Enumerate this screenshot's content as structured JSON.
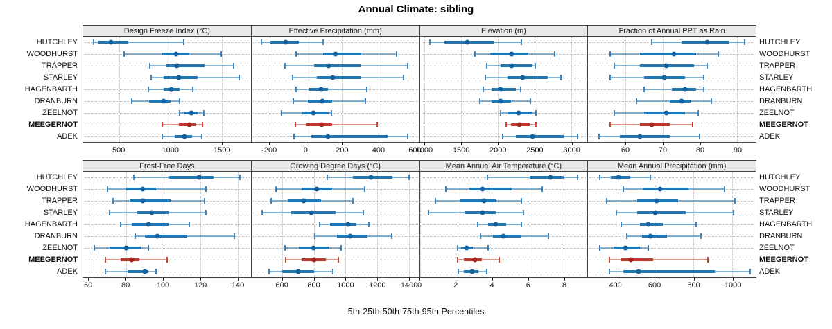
{
  "title": "Annual Climate: sibling",
  "caption": "5th-25th-50th-75th-95th Percentiles",
  "sites": [
    "HUTCHLEY",
    "WOODHURST",
    "TRAPPER",
    "STARLEY",
    "HAGENBARTH",
    "DRANBURN",
    "ZEELNOT",
    "MEEGERNOT",
    "ADEK"
  ],
  "highlight_site": "MEEGERNOT",
  "colors": {
    "series_blue": "#1f77b4",
    "series_blue_dot": "#15639e",
    "highlight_red": "#c0392b",
    "highlight_red_dot": "#a52a1d",
    "strip_background": "#e9e9e9",
    "grid": "#b8b8b8"
  },
  "percentile_labels": [
    "5th",
    "25th",
    "50th",
    "75th",
    "95th"
  ],
  "chart_data": [
    {
      "type": "interval-dotplot",
      "title": "Design Freeze Index (°C)",
      "xlim": [
        150,
        1780
      ],
      "ticks": [
        500,
        1000,
        1500
      ],
      "values": [
        [
          250,
          290,
          420,
          590,
          1130
        ],
        [
          545,
          910,
          1055,
          1185,
          1490
        ],
        [
          800,
          960,
          1060,
          1330,
          1610
        ],
        [
          810,
          930,
          1080,
          1260,
          1670
        ],
        [
          785,
          930,
          1005,
          1090,
          1215
        ],
        [
          620,
          790,
          930,
          1000,
          1090
        ],
        [
          1085,
          1135,
          1200,
          1260,
          1320
        ],
        [
          920,
          1080,
          1180,
          1240,
          1310
        ],
        [
          920,
          1040,
          1135,
          1210,
          1300
        ]
      ]
    },
    {
      "type": "interval-dotplot",
      "title": "Effective Precipitation (mm)",
      "xlim": [
        -300,
        625
      ],
      "ticks": [
        -200,
        0,
        200,
        400,
        600
      ],
      "values": [
        [
          -245,
          -195,
          -112,
          -40,
          95
        ],
        [
          -55,
          95,
          165,
          305,
          500
        ],
        [
          -115,
          45,
          127,
          300,
          560
        ],
        [
          -75,
          60,
          148,
          300,
          540
        ],
        [
          -55,
          15,
          85,
          120,
          335
        ],
        [
          -70,
          10,
          90,
          145,
          330
        ],
        [
          -135,
          -20,
          40,
          125,
          140
        ],
        [
          -57,
          0,
          89,
          145,
          395
        ],
        [
          -65,
          30,
          120,
          450,
          560
        ]
      ]
    },
    {
      "type": "interval-dotplot",
      "title": "Elevation (m)",
      "xlim": [
        935,
        3220
      ],
      "ticks": [
        1000,
        1500,
        2000,
        2500,
        3000
      ],
      "values": [
        [
          1070,
          1275,
          1585,
          1940,
          2320
        ],
        [
          1690,
          1890,
          2190,
          2415,
          2770
        ],
        [
          1845,
          2035,
          2190,
          2470,
          2510
        ],
        [
          1830,
          2130,
          2335,
          2680,
          2860
        ],
        [
          1800,
          1910,
          2035,
          2240,
          2310
        ],
        [
          1755,
          1910,
          2035,
          2175,
          2445
        ],
        [
          2040,
          2130,
          2280,
          2460,
          2515
        ],
        [
          2115,
          2180,
          2295,
          2430,
          2515
        ],
        [
          2065,
          2245,
          2470,
          2900,
          3085
        ]
      ]
    },
    {
      "type": "interval-dotplot",
      "title": "Fraction of Annual PPT as Rain",
      "xlim": [
        50,
        95
      ],
      "ticks": [
        60,
        70,
        80,
        90
      ],
      "values": [
        [
          67,
          75,
          82,
          88,
          92
        ],
        [
          56,
          64,
          73,
          79,
          85
        ],
        [
          57,
          64,
          71,
          78.5,
          82
        ],
        [
          56,
          65,
          70.5,
          76,
          81
        ],
        [
          65,
          72.5,
          76,
          79,
          81
        ],
        [
          63,
          72,
          75,
          77.5,
          83
        ],
        [
          57,
          65,
          71,
          76,
          79.5
        ],
        [
          56,
          64,
          67,
          72,
          78
        ],
        [
          53,
          58.5,
          64,
          72,
          80
        ]
      ]
    },
    {
      "type": "interval-dotplot",
      "title": "Frost-Free Days",
      "xlim": [
        57,
        147
      ],
      "ticks": [
        60,
        80,
        100,
        120,
        140
      ],
      "values": [
        [
          84,
          103,
          119,
          127,
          141
        ],
        [
          70,
          80,
          89,
          96,
          123
        ],
        [
          73,
          82,
          89,
          104,
          122
        ],
        [
          71,
          86,
          94,
          103,
          123
        ],
        [
          77,
          83,
          92,
          103,
          114
        ],
        [
          85,
          90,
          97,
          113,
          138
        ],
        [
          63,
          71,
          80,
          88,
          92
        ],
        [
          69,
          77,
          83,
          87,
          102
        ],
        [
          69,
          81,
          90,
          92,
          96
        ]
      ]
    },
    {
      "type": "interval-dotplot",
      "title": "Growing Degree Days (°C)",
      "xlim": [
        405,
        1465
      ],
      "ticks": [
        600,
        800,
        1000,
        1200,
        1400
      ],
      "values": [
        [
          885,
          1045,
          1160,
          1295,
          1400
        ],
        [
          560,
          720,
          820,
          915,
          1120
        ],
        [
          530,
          635,
          735,
          845,
          1045
        ],
        [
          470,
          655,
          785,
          935,
          1110
        ],
        [
          835,
          900,
          1015,
          1070,
          1145
        ],
        [
          805,
          945,
          1030,
          1140,
          1290
        ],
        [
          615,
          705,
          795,
          895,
          970
        ],
        [
          620,
          720,
          800,
          875,
          955
        ],
        [
          515,
          600,
          700,
          800,
          920
        ]
      ]
    },
    {
      "type": "interval-dotplot",
      "title": "Mean Annual Air Temperature (°C)",
      "xlim": [
        0,
        9.3
      ],
      "ticks": [
        0,
        2,
        4,
        6,
        8
      ],
      "values": [
        [
          3.75,
          6.1,
          7.25,
          8.0,
          8.75
        ],
        [
          1.45,
          2.75,
          3.5,
          5.1,
          6.8
        ],
        [
          0.85,
          2.25,
          3.55,
          4.2,
          5.65
        ],
        [
          0.5,
          2.5,
          3.5,
          4.2,
          5.75
        ],
        [
          3.2,
          3.8,
          4.2,
          4.8,
          5.65
        ],
        [
          3.35,
          4.05,
          4.65,
          5.65,
          7.15
        ],
        [
          2.1,
          2.3,
          2.6,
          2.95,
          3.8
        ],
        [
          2.1,
          2.45,
          3.05,
          3.45,
          4.4
        ],
        [
          2.15,
          2.45,
          2.9,
          3.25,
          3.7
        ]
      ]
    },
    {
      "type": "interval-dotplot",
      "title": "Mean Annual Precipitation (mm)",
      "xlim": [
        260,
        1120
      ],
      "ticks": [
        400,
        600,
        800,
        1000
      ],
      "values": [
        [
          320,
          375,
          415,
          475,
          580
        ],
        [
          440,
          540,
          630,
          775,
          960
        ],
        [
          355,
          510,
          610,
          720,
          1015
        ],
        [
          405,
          510,
          605,
          760,
          1005
        ],
        [
          430,
          525,
          570,
          645,
          815
        ],
        [
          460,
          535,
          580,
          665,
          840
        ],
        [
          320,
          390,
          450,
          525,
          570
        ],
        [
          368,
          430,
          480,
          595,
          875
        ],
        [
          370,
          440,
          520,
          910,
          1090
        ]
      ]
    }
  ]
}
